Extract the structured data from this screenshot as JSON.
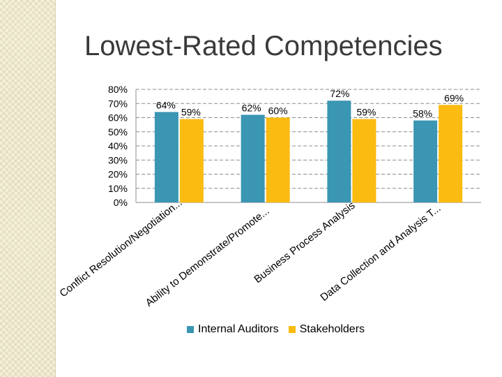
{
  "slide": {
    "title": "Lowest-Rated Competencies",
    "accent_panel_color": "#f4f0d9"
  },
  "chart_data": {
    "type": "bar",
    "title": "",
    "xlabel": "",
    "ylabel": "",
    "ylim": [
      0,
      80
    ],
    "yticks": [
      "0%",
      "10%",
      "20%",
      "30%",
      "40%",
      "50%",
      "60%",
      "70%",
      "80%"
    ],
    "grid": true,
    "legend_position": "bottom",
    "categories": [
      "Conflict Resolution/Negotiation...",
      "Ability to Demonstrate/Promote...",
      "Business Process Analysis",
      "Data Collection and Analysis T..."
    ],
    "series": [
      {
        "name": "Internal Auditors",
        "color": "#3a96b2",
        "values": [
          64,
          62,
          72,
          58
        ],
        "labels": [
          "64%",
          "62%",
          "72%",
          "58%"
        ]
      },
      {
        "name": "Stakeholders",
        "color": "#fbbb10",
        "values": [
          59,
          60,
          59,
          69
        ],
        "labels": [
          "59%",
          "60%",
          "59%",
          "69%"
        ]
      }
    ]
  }
}
